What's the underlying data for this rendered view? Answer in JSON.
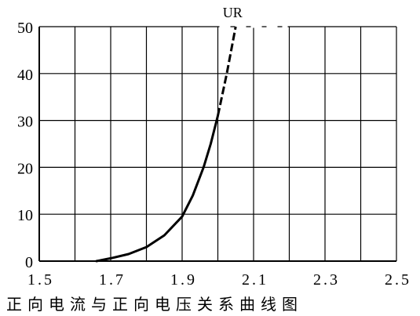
{
  "caption": "正向电流与正向电压关系曲线图",
  "chart_data": {
    "type": "line",
    "title": "",
    "xlabel": "",
    "ylabel": "",
    "xlim": [
      1.5,
      2.5
    ],
    "ylim": [
      0,
      50
    ],
    "grid": true,
    "x_ticks": [
      1.5,
      1.6,
      1.7,
      1.8,
      1.9,
      2.0,
      2.1,
      2.2,
      2.3,
      2.4,
      2.5
    ],
    "x_tick_labels": [
      "1.5",
      "",
      "1.7",
      "",
      "1.9",
      "",
      "2.1",
      "",
      "2.3",
      "",
      "2.5"
    ],
    "y_ticks": [
      0,
      10,
      20,
      30,
      40,
      50
    ],
    "y_tick_labels": [
      "0",
      "10",
      "20",
      "30",
      "40",
      "50"
    ],
    "series": [
      {
        "name": "UR",
        "color": "#000000",
        "points": [
          {
            "x": 1.66,
            "y": 0
          },
          {
            "x": 1.7,
            "y": 0.6
          },
          {
            "x": 1.75,
            "y": 1.5
          },
          {
            "x": 1.8,
            "y": 3
          },
          {
            "x": 1.85,
            "y": 5.5
          },
          {
            "x": 1.9,
            "y": 9.5
          },
          {
            "x": 1.93,
            "y": 14
          },
          {
            "x": 1.96,
            "y": 20
          },
          {
            "x": 1.98,
            "y": 25
          },
          {
            "x": 2.0,
            "y": 31
          }
        ],
        "extrapolated_points": [
          {
            "x": 2.0,
            "y": 31
          },
          {
            "x": 2.025,
            "y": 40
          },
          {
            "x": 2.05,
            "y": 50
          }
        ]
      }
    ]
  }
}
